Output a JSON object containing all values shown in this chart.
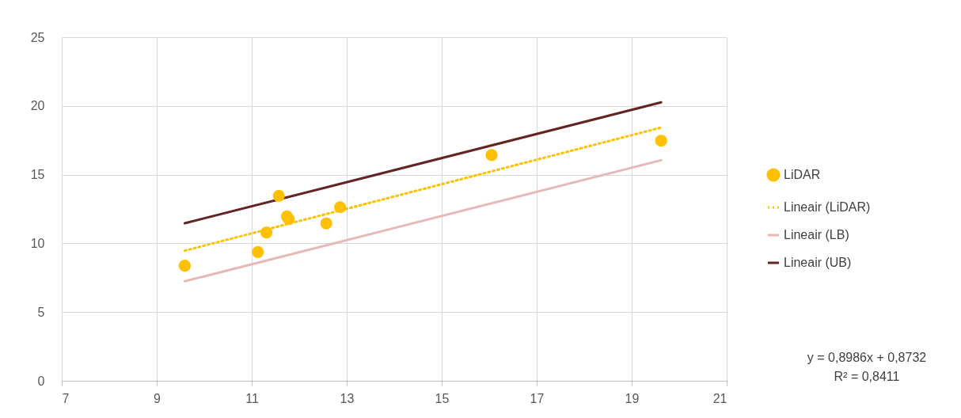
{
  "chart_data": {
    "type": "scatter",
    "xlim": [
      7,
      21
    ],
    "xticks": [
      7,
      9,
      11,
      13,
      15,
      17,
      19,
      21
    ],
    "ylim": [
      0,
      25
    ],
    "yticks": [
      0,
      5,
      10,
      15,
      20,
      25
    ],
    "grid": true,
    "legend": "right",
    "series": [
      {
        "name": "LiDAR",
        "marker": "circle",
        "color": "#ffc000",
        "x": [
          9.59,
          11.13,
          11.31,
          11.57,
          11.74,
          11.78,
          12.57,
          12.86,
          16.05,
          19.62
        ],
        "values": [
          8.37,
          9.37,
          10.79,
          13.46,
          11.96,
          11.77,
          11.45,
          12.63,
          16.42,
          17.47
        ]
      },
      {
        "name": "Lineair (LiDAR)",
        "type": "line",
        "line_style": "dotted",
        "color": "#ffc000",
        "x": [
          9.59,
          19.62
        ],
        "values": [
          9.47,
          18.43
        ]
      },
      {
        "name": "Lineair (LB)",
        "type": "line",
        "line_style": "solid",
        "color": "#e6b9b8",
        "x": [
          9.59,
          19.62
        ],
        "values": [
          7.24,
          16.05
        ]
      },
      {
        "name": "Lineair (UB)",
        "type": "line",
        "line_style": "solid",
        "color": "#632523",
        "x": [
          9.59,
          19.62
        ],
        "values": [
          11.46,
          20.26
        ]
      }
    ],
    "annotations": [
      "y = 0,8986x + 0,8732",
      "R² = 0,8411"
    ]
  }
}
